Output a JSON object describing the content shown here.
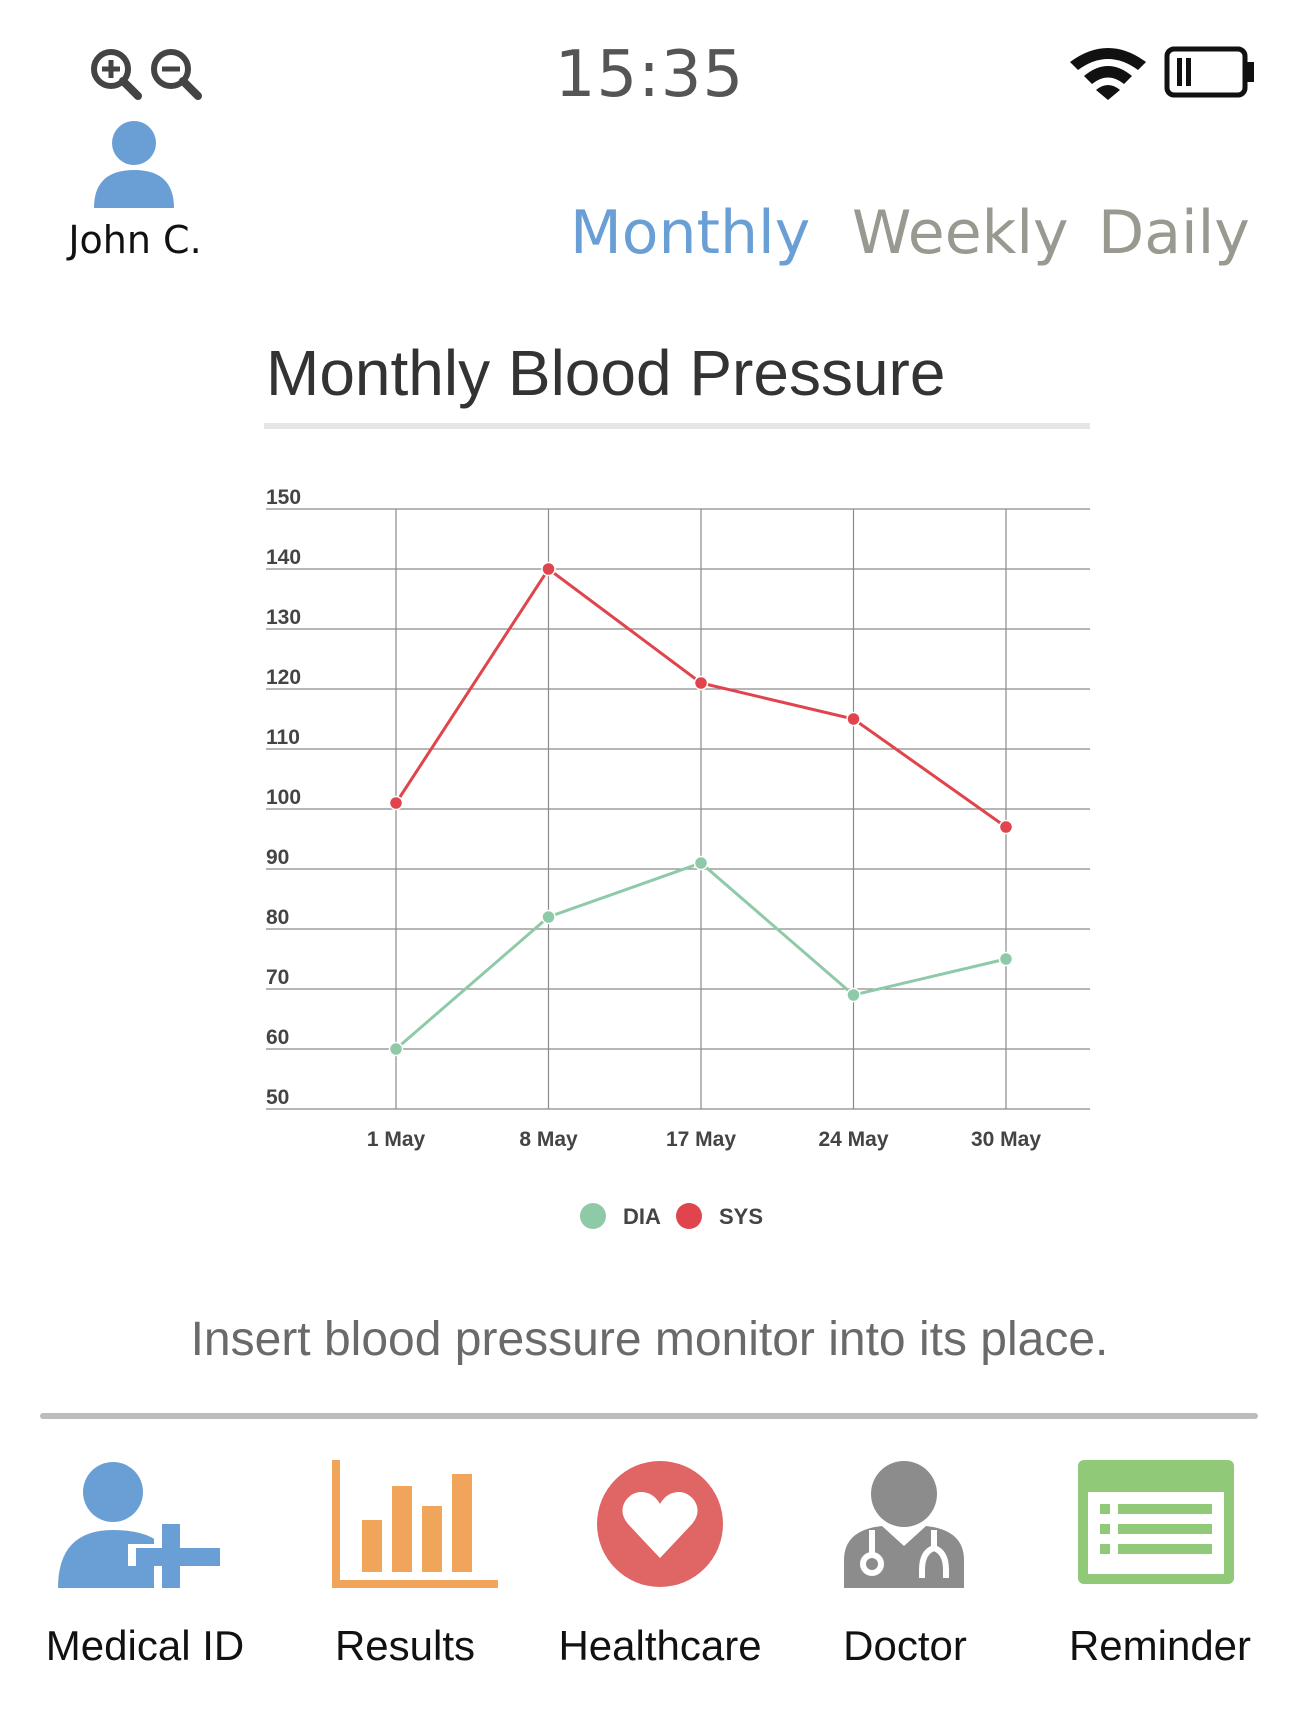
{
  "status_bar": {
    "time": "15:35",
    "zoom_in_icon": "zoom-in-icon",
    "zoom_out_icon": "zoom-out-icon",
    "wifi_icon": "wifi-icon",
    "battery_icon": "battery-low-icon"
  },
  "user": {
    "name": "John C.",
    "avatar_icon": "user-avatar-icon"
  },
  "tabs": [
    {
      "label": "Monthly",
      "active": true
    },
    {
      "label": "Weekly",
      "active": false
    },
    {
      "label": "Daily",
      "active": false
    }
  ],
  "colors": {
    "accent": "#6a9fd6",
    "inactive_tab": "#999990",
    "sys": "#e0444c",
    "dia": "#8fcaa8"
  },
  "chart_data": {
    "type": "line",
    "title": "Monthly Blood Pressure",
    "categories": [
      "1 May",
      "8 May",
      "17 May",
      "24 May",
      "30 May"
    ],
    "series": [
      {
        "name": "SYS",
        "color": "#e0444c",
        "values": [
          101,
          140,
          121,
          115,
          97
        ]
      },
      {
        "name": "DIA",
        "color": "#8fcaa8",
        "values": [
          60,
          82,
          91,
          69,
          75
        ]
      }
    ],
    "ylim": [
      50,
      150
    ],
    "yticks": [
      150,
      140,
      130,
      120,
      110,
      100,
      90,
      80,
      70,
      60,
      50
    ],
    "legend": [
      {
        "name": "DIA",
        "color": "#8fcaa8"
      },
      {
        "name": "SYS",
        "color": "#e0444c"
      }
    ],
    "legend_position": "bottom",
    "grid": true
  },
  "instruction": "Insert blood pressure monitor into its place.",
  "nav": [
    {
      "label": "Medical ID",
      "icon": "medical-id-icon"
    },
    {
      "label": "Results",
      "icon": "results-bar-chart-icon"
    },
    {
      "label": "Healthcare",
      "icon": "heart-icon"
    },
    {
      "label": "Doctor",
      "icon": "doctor-icon"
    },
    {
      "label": "Reminder",
      "icon": "reminder-list-icon"
    }
  ]
}
